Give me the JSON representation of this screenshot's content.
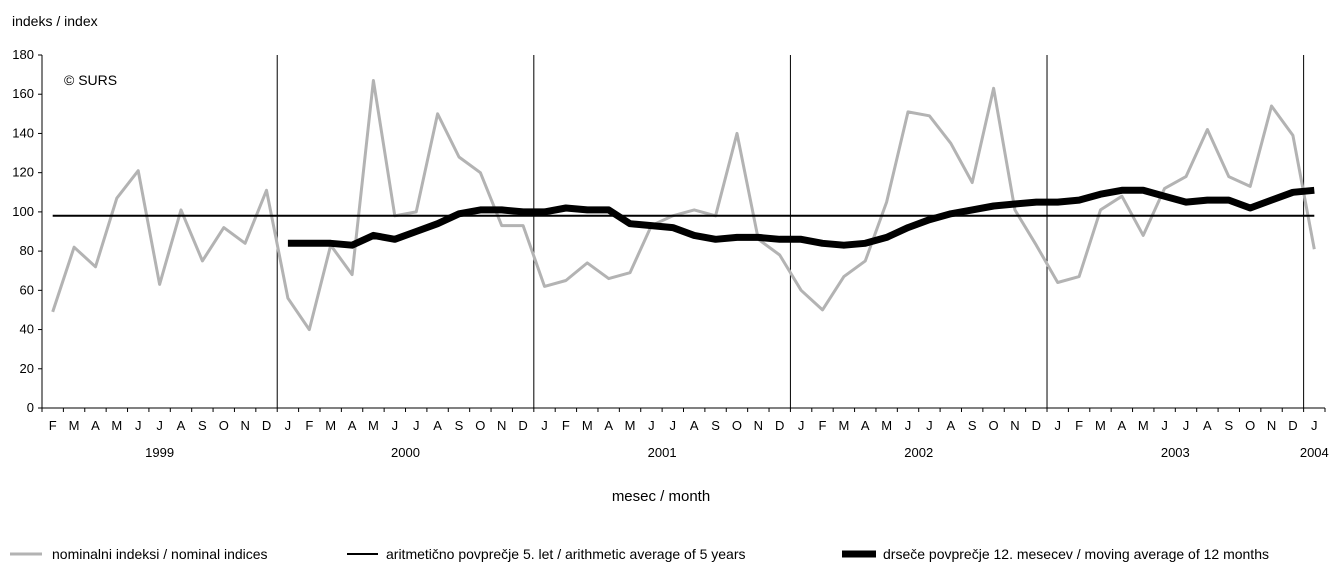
{
  "chart_data": {
    "type": "line",
    "ylabel": "indeks / index",
    "xlabel": "mesec / month",
    "watermark": "© SURS",
    "ylim": [
      0,
      180
    ],
    "yticks": [
      "0",
      "20",
      "40",
      "60",
      "80",
      "100",
      "120",
      "140",
      "160",
      "180"
    ],
    "months": [
      "F",
      "M",
      "A",
      "M",
      "J",
      "J",
      "A",
      "S",
      "O",
      "N",
      "D",
      "J",
      "F",
      "M",
      "A",
      "M",
      "J",
      "J",
      "A",
      "S",
      "O",
      "N",
      "D",
      "J",
      "F",
      "M",
      "A",
      "M",
      "J",
      "J",
      "A",
      "S",
      "O",
      "N",
      "D",
      "J",
      "F",
      "M",
      "A",
      "M",
      "J",
      "J",
      "A",
      "S",
      "O",
      "N",
      "D",
      "J",
      "F",
      "M",
      "A",
      "M",
      "J",
      "J",
      "A",
      "S",
      "O",
      "N",
      "D",
      "J"
    ],
    "years": [
      {
        "label": "1999",
        "first": 0,
        "last": 10
      },
      {
        "label": "2000",
        "first": 11,
        "last": 22
      },
      {
        "label": "2001",
        "first": 23,
        "last": 34
      },
      {
        "label": "2002",
        "first": 35,
        "last": 46
      },
      {
        "label": "2003",
        "first": 47,
        "last": 58
      },
      {
        "label": "2004",
        "first": 59,
        "last": 59
      }
    ],
    "year_dividers_after": [
      10,
      22,
      34,
      46,
      58
    ],
    "series": [
      {
        "name": "nominalni indeksi / nominal indices",
        "color": "#b3b3b3",
        "values": [
          49,
          82,
          72,
          107,
          121,
          63,
          101,
          75,
          92,
          84,
          111,
          56,
          40,
          83,
          68,
          167,
          98,
          100,
          150,
          128,
          120,
          93,
          93,
          62,
          65,
          74,
          66,
          69,
          93,
          98,
          101,
          98,
          140,
          86,
          78,
          60,
          50,
          67,
          75,
          105,
          151,
          149,
          135,
          115,
          163,
          101,
          83,
          64,
          67,
          101,
          108,
          88,
          112,
          118,
          142,
          118,
          113,
          154,
          139,
          81
        ]
      },
      {
        "name": "aritmetično povprečje 5. let / arithmetic average of 5 years",
        "color": "#000000",
        "constant": 98
      },
      {
        "name": "drseče povprečje 12. mesecev / moving average of 12 months",
        "color": "#000000",
        "start_index": 11,
        "values": [
          84,
          84,
          84,
          83,
          88,
          86,
          90,
          94,
          99,
          101,
          101,
          100,
          100,
          102,
          101,
          101,
          94,
          93,
          92,
          88,
          86,
          87,
          87,
          86,
          86,
          84,
          83,
          84,
          87,
          92,
          96,
          99,
          101,
          103,
          104,
          105,
          105,
          106,
          109,
          111,
          111,
          108,
          105,
          106,
          106,
          102,
          106,
          110,
          111
        ]
      }
    ]
  }
}
